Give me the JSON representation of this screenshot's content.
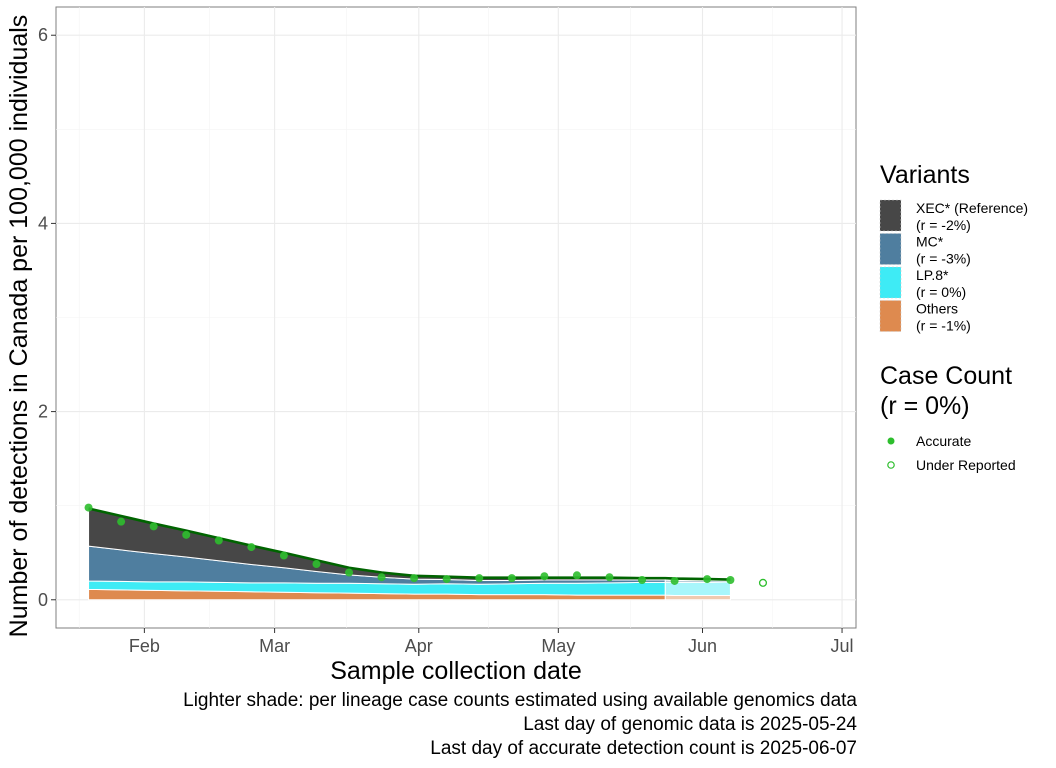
{
  "chart_data": {
    "type": "area",
    "xlabel": "Sample collection date",
    "ylabel": "Number of detections in Canada per 100,000 individuals",
    "xlim": [
      "2025-01-13",
      "2025-07-04"
    ],
    "ylim": [
      -0.3,
      6.3
    ],
    "x_ticks": [
      {
        "date": "2025-02-01",
        "label": "Feb"
      },
      {
        "date": "2025-03-01",
        "label": "Mar"
      },
      {
        "date": "2025-04-01",
        "label": "Apr"
      },
      {
        "date": "2025-05-01",
        "label": "May"
      },
      {
        "date": "2025-06-01",
        "label": "Jun"
      },
      {
        "date": "2025-07-01",
        "label": "Jul"
      }
    ],
    "y_ticks": [
      0,
      2,
      4,
      6
    ],
    "grid": true,
    "legend_position": "right",
    "stack_x": [
      "2025-01-20",
      "2025-01-27",
      "2025-02-03",
      "2025-02-10",
      "2025-02-17",
      "2025-02-24",
      "2025-03-03",
      "2025-03-10",
      "2025-03-17",
      "2025-03-24",
      "2025-03-31",
      "2025-04-07",
      "2025-04-14",
      "2025-04-21",
      "2025-04-28",
      "2025-05-05",
      "2025-05-12",
      "2025-05-19",
      "2025-05-24",
      "2025-05-26",
      "2025-06-02",
      "2025-06-07"
    ],
    "series": [
      {
        "name": "Others",
        "rate": "(r = -1%)",
        "color": "#DE8A4F",
        "values": [
          0.11,
          0.105,
          0.1,
          0.095,
          0.09,
          0.085,
          0.08,
          0.075,
          0.07,
          0.065,
          0.06,
          0.06,
          0.055,
          0.055,
          0.055,
          0.05,
          0.05,
          0.05,
          0.05,
          0.045,
          0.045,
          0.045
        ]
      },
      {
        "name": "LP.8*",
        "rate": "(r = 0%)",
        "color": "#3EEBF5",
        "values": [
          0.09,
          0.09,
          0.09,
          0.095,
          0.095,
          0.095,
          0.1,
          0.1,
          0.105,
          0.105,
          0.105,
          0.11,
          0.11,
          0.115,
          0.12,
          0.125,
          0.13,
          0.135,
          0.135,
          0.14,
          0.14,
          0.145
        ]
      },
      {
        "name": "MC*",
        "rate": "(r = -3%)",
        "color": "#4F7E9F",
        "values": [
          0.37,
          0.335,
          0.3,
          0.265,
          0.23,
          0.195,
          0.16,
          0.125,
          0.09,
          0.07,
          0.055,
          0.045,
          0.04,
          0.035,
          0.035,
          0.035,
          0.03,
          0.025,
          0.025,
          0.02,
          0.02,
          0.015
        ]
      },
      {
        "name": "XEC* (Reference)",
        "rate": "(r = -2%)",
        "color": "#474747",
        "values": [
          0.4,
          0.36,
          0.32,
          0.28,
          0.24,
          0.2,
          0.16,
          0.12,
          0.075,
          0.05,
          0.035,
          0.03,
          0.03,
          0.03,
          0.025,
          0.025,
          0.025,
          0.02,
          0.02,
          0.02,
          0.015,
          0.01
        ]
      }
    ],
    "total_line": {
      "x": [
        "2025-01-20",
        "2025-01-27",
        "2025-02-03",
        "2025-02-10",
        "2025-02-17",
        "2025-02-24",
        "2025-03-03",
        "2025-03-10",
        "2025-03-17",
        "2025-03-24",
        "2025-03-31",
        "2025-04-07",
        "2025-04-14",
        "2025-04-21",
        "2025-04-28",
        "2025-05-05",
        "2025-05-12",
        "2025-05-19",
        "2025-05-24",
        "2025-05-26",
        "2025-06-02",
        "2025-06-07"
      ],
      "values": [
        0.97,
        0.89,
        0.81,
        0.735,
        0.655,
        0.575,
        0.5,
        0.42,
        0.34,
        0.29,
        0.255,
        0.245,
        0.235,
        0.235,
        0.235,
        0.235,
        0.235,
        0.23,
        0.23,
        0.225,
        0.22,
        0.215
      ],
      "color": "#006400"
    },
    "case_count": {
      "legend_title_line1": "Case Count",
      "legend_title_line2": "(r = 0%)",
      "accurate_label": "Accurate",
      "under_reported_label": "Under Reported",
      "color": "#2DBE2D",
      "accurate": [
        {
          "x": "2025-01-20",
          "y": 0.98
        },
        {
          "x": "2025-01-27",
          "y": 0.83
        },
        {
          "x": "2025-02-03",
          "y": 0.78
        },
        {
          "x": "2025-02-10",
          "y": 0.69
        },
        {
          "x": "2025-02-17",
          "y": 0.63
        },
        {
          "x": "2025-02-24",
          "y": 0.56
        },
        {
          "x": "2025-03-03",
          "y": 0.47
        },
        {
          "x": "2025-03-10",
          "y": 0.38
        },
        {
          "x": "2025-03-17",
          "y": 0.29
        },
        {
          "x": "2025-03-24",
          "y": 0.24
        },
        {
          "x": "2025-03-31",
          "y": 0.23
        },
        {
          "x": "2025-04-07",
          "y": 0.22
        },
        {
          "x": "2025-04-14",
          "y": 0.23
        },
        {
          "x": "2025-04-21",
          "y": 0.23
        },
        {
          "x": "2025-04-28",
          "y": 0.25
        },
        {
          "x": "2025-05-05",
          "y": 0.26
        },
        {
          "x": "2025-05-12",
          "y": 0.24
        },
        {
          "x": "2025-05-19",
          "y": 0.21
        },
        {
          "x": "2025-05-26",
          "y": 0.2
        },
        {
          "x": "2025-06-02",
          "y": 0.22
        },
        {
          "x": "2025-06-07",
          "y": 0.21
        }
      ],
      "under_reported": [
        {
          "x": "2025-06-14",
          "y": 0.18
        }
      ]
    },
    "genomic_cutoff_date": "2025-05-24",
    "legend_title": "Variants"
  },
  "caption": {
    "line1": "Lighter shade: per lineage case counts estimated using available genomics data",
    "line2": "Last day of genomic data is 2025-05-24",
    "line3": "Last day of accurate detection count is 2025-06-07"
  }
}
